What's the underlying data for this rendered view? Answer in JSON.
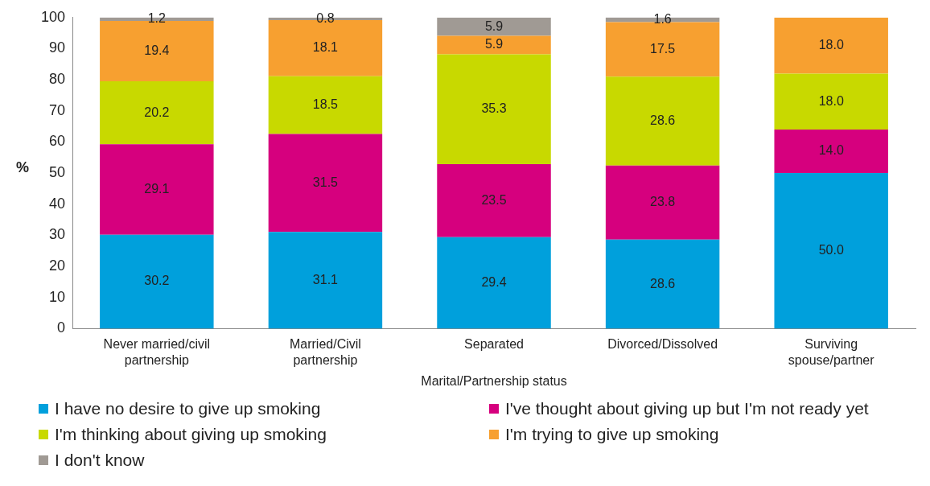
{
  "chart_data": {
    "type": "bar",
    "stacked": true,
    "xlabel": "Marital/Partnership status",
    "ylabel": "%",
    "ylim": [
      0,
      100
    ],
    "yticks": [
      0,
      10,
      20,
      30,
      40,
      50,
      60,
      70,
      80,
      90,
      100
    ],
    "grid": false,
    "legend": "bottom",
    "categories": [
      "Never married/civil partnership",
      "Married/Civil partnership",
      "Separated",
      "Divorced/Dissolved",
      "Surviving spouse/partner"
    ],
    "series": [
      {
        "name": "I have no desire to give up smoking",
        "color": "#00a0dc",
        "values": [
          30.2,
          31.1,
          29.4,
          28.6,
          50.0
        ],
        "value_labels": [
          "30.2",
          "31.1",
          "29.4",
          "28.6",
          "50.0"
        ]
      },
      {
        "name": "I've thought about giving up but I'm not ready yet",
        "color": "#d6007e",
        "values": [
          29.1,
          31.5,
          23.5,
          23.8,
          14.0
        ],
        "value_labels": [
          "29.1",
          "31.5",
          "23.5",
          "23.8",
          "14.0"
        ]
      },
      {
        "name": "I'm thinking about giving up smoking",
        "color": "#c8d900",
        "values": [
          20.2,
          18.5,
          35.3,
          28.6,
          18.0
        ],
        "value_labels": [
          "20.2",
          "18.5",
          "35.3",
          "28.6",
          "18.0"
        ]
      },
      {
        "name": "I'm trying to give up smoking",
        "color": "#f7a030",
        "values": [
          19.4,
          18.1,
          5.9,
          17.5,
          18.0
        ],
        "value_labels": [
          "19.4",
          "18.1",
          "5.9",
          "17.5",
          "18.0"
        ]
      },
      {
        "name": "I don't know",
        "color": "#a09a94",
        "values": [
          1.2,
          0.8,
          5.9,
          1.6,
          null
        ],
        "value_labels": [
          "1.2",
          "0.8",
          "5.9",
          "1.6",
          null
        ]
      }
    ]
  }
}
